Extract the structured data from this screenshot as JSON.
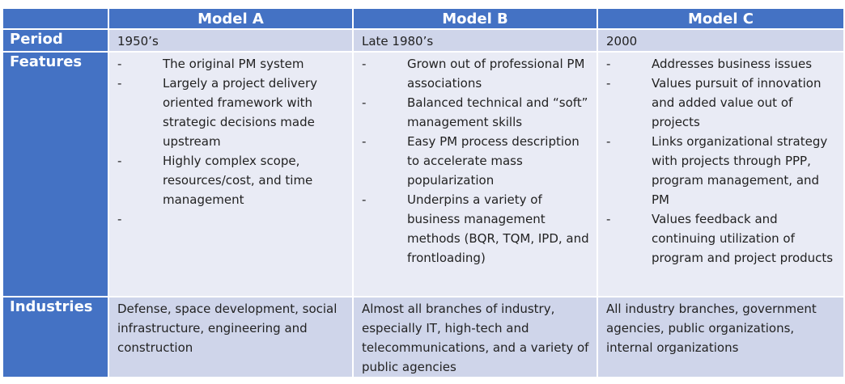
{
  "columns": [
    "",
    "Model A",
    "Model B",
    "Model C"
  ],
  "rows": [
    {
      "label": "Period",
      "cells": [
        "1950’s",
        "Late 1980’s",
        "2000"
      ]
    },
    {
      "label": "Features",
      "bullet": "-",
      "cells": [
        [
          "The original PM system",
          "Largely a project delivery oriented framework with strategic decisions made upstream",
          "Highly complex scope, resources/cost, and time management",
          ""
        ],
        [
          "Grown out of professional PM associations",
          "Balanced technical and “soft” management skills",
          "Easy PM process description to accelerate mass popularization",
          "Underpins a variety of business management methods (BQR, TQM, IPD, and frontloading)"
        ],
        [
          "Addresses business issues",
          "Values pursuit of innovation and added value out of projects",
          "Links organizational strategy with projects through PPP, program management, and PM",
          "Values feedback and continuing utilization of program and project products"
        ]
      ]
    },
    {
      "label": "Industries",
      "cells": [
        "Defense, space development, social infrastructure, engineering and construction",
        "Almost all branches of industry, especially IT, high-tech and telecommunications, and a variety of public agencies",
        "All industry branches, government agencies, public organizations, internal organizations"
      ]
    }
  ],
  "colors": {
    "header": "#4472c4",
    "row_dark": "#cfd5ea",
    "row_light": "#e9ebf5"
  }
}
